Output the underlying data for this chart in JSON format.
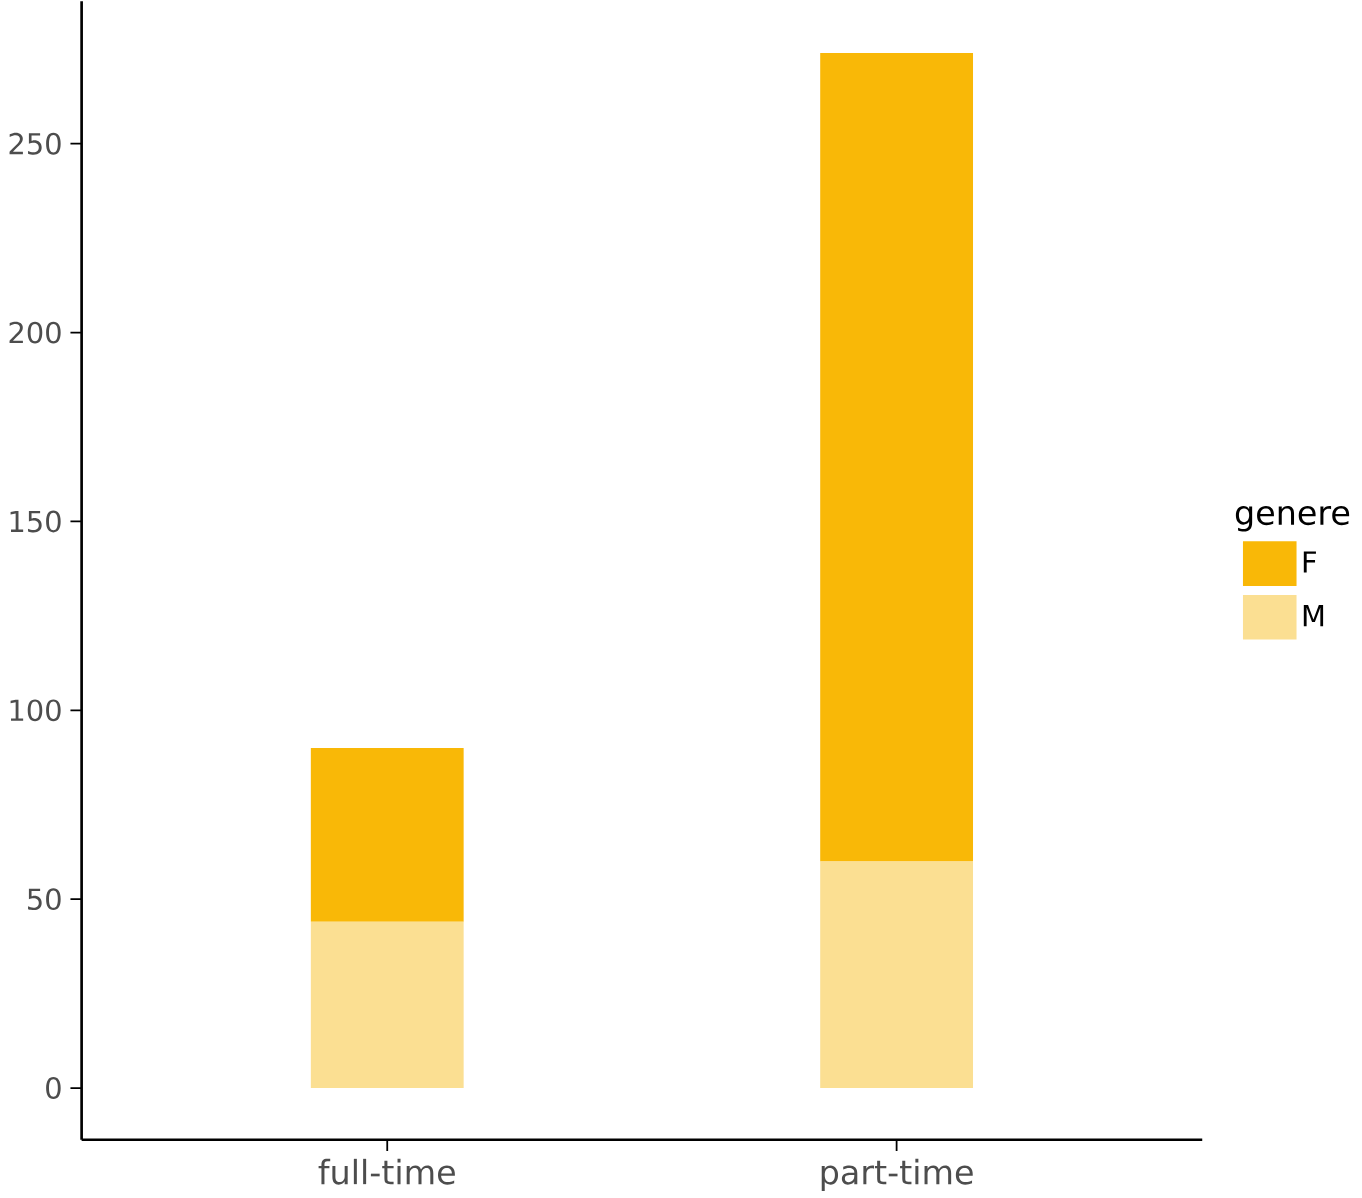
{
  "chart_data": {
    "type": "bar",
    "stacked": true,
    "categories": [
      "full-time",
      "part-time"
    ],
    "series": [
      {
        "name": "M",
        "color": "#fbdf92",
        "values": [
          44,
          60
        ]
      },
      {
        "name": "F",
        "color": "#f9b807",
        "values": [
          46,
          214
        ]
      }
    ],
    "legend_title": "genere",
    "legend": "right",
    "ylim": [
      -13.7,
      287.7
    ],
    "yticks": [
      0,
      50,
      100,
      150,
      200,
      250
    ],
    "grid": false
  }
}
